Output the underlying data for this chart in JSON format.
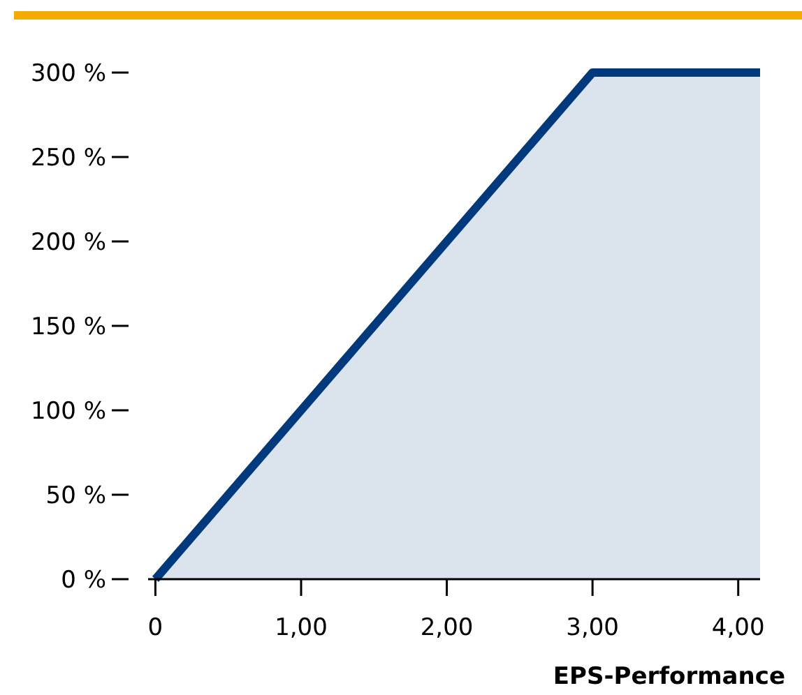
{
  "chart_data": {
    "type": "area",
    "xlabel": "EPS-Performance",
    "x": [
      0,
      3,
      4.15
    ],
    "series": [
      {
        "color": "#003a7d",
        "values": [
          0,
          300,
          300
        ]
      }
    ],
    "xlim": [
      -0.05,
      4.15
    ],
    "xticks": [
      {
        "value": 0,
        "label": "0"
      },
      {
        "value": 1,
        "label": "1,00"
      },
      {
        "value": 2,
        "label": "2,00"
      },
      {
        "value": 3,
        "label": "3,00"
      },
      {
        "value": 4,
        "label": "4,00"
      }
    ],
    "ylim": [
      0,
      300
    ],
    "yticks": [
      {
        "value": 0,
        "label": "0 %"
      },
      {
        "value": 50,
        "label": "50 %"
      },
      {
        "value": 100,
        "label": "100 %"
      },
      {
        "value": 150,
        "label": "150 %"
      },
      {
        "value": 200,
        "label": "200 %"
      },
      {
        "value": 250,
        "label": "250 %"
      },
      {
        "value": 300,
        "label": "300 %"
      }
    ],
    "grid": false
  }
}
